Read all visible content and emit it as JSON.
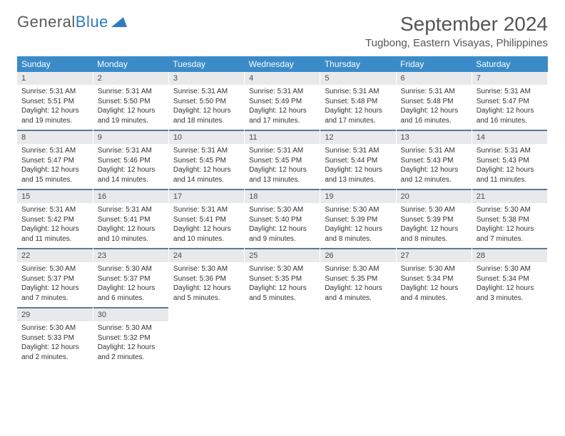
{
  "brand": {
    "name1": "General",
    "name2": "Blue"
  },
  "title": "September 2024",
  "subtitle": "Tugbong, Eastern Visayas, Philippines",
  "colors": {
    "header_bg": "#3b8bc8",
    "header_text": "#ffffff",
    "daynum_bg": "#e8e9ea",
    "daynum_border": "#5a7a9a",
    "text": "#333333",
    "brand_gray": "#5a5a5a",
    "brand_blue": "#2f7bbf"
  },
  "weekdays": [
    "Sunday",
    "Monday",
    "Tuesday",
    "Wednesday",
    "Thursday",
    "Friday",
    "Saturday"
  ],
  "days": [
    {
      "n": "1",
      "sunrise": "Sunrise: 5:31 AM",
      "sunset": "Sunset: 5:51 PM",
      "day1": "Daylight: 12 hours",
      "day2": "and 19 minutes."
    },
    {
      "n": "2",
      "sunrise": "Sunrise: 5:31 AM",
      "sunset": "Sunset: 5:50 PM",
      "day1": "Daylight: 12 hours",
      "day2": "and 19 minutes."
    },
    {
      "n": "3",
      "sunrise": "Sunrise: 5:31 AM",
      "sunset": "Sunset: 5:50 PM",
      "day1": "Daylight: 12 hours",
      "day2": "and 18 minutes."
    },
    {
      "n": "4",
      "sunrise": "Sunrise: 5:31 AM",
      "sunset": "Sunset: 5:49 PM",
      "day1": "Daylight: 12 hours",
      "day2": "and 17 minutes."
    },
    {
      "n": "5",
      "sunrise": "Sunrise: 5:31 AM",
      "sunset": "Sunset: 5:48 PM",
      "day1": "Daylight: 12 hours",
      "day2": "and 17 minutes."
    },
    {
      "n": "6",
      "sunrise": "Sunrise: 5:31 AM",
      "sunset": "Sunset: 5:48 PM",
      "day1": "Daylight: 12 hours",
      "day2": "and 16 minutes."
    },
    {
      "n": "7",
      "sunrise": "Sunrise: 5:31 AM",
      "sunset": "Sunset: 5:47 PM",
      "day1": "Daylight: 12 hours",
      "day2": "and 16 minutes."
    },
    {
      "n": "8",
      "sunrise": "Sunrise: 5:31 AM",
      "sunset": "Sunset: 5:47 PM",
      "day1": "Daylight: 12 hours",
      "day2": "and 15 minutes."
    },
    {
      "n": "9",
      "sunrise": "Sunrise: 5:31 AM",
      "sunset": "Sunset: 5:46 PM",
      "day1": "Daylight: 12 hours",
      "day2": "and 14 minutes."
    },
    {
      "n": "10",
      "sunrise": "Sunrise: 5:31 AM",
      "sunset": "Sunset: 5:45 PM",
      "day1": "Daylight: 12 hours",
      "day2": "and 14 minutes."
    },
    {
      "n": "11",
      "sunrise": "Sunrise: 5:31 AM",
      "sunset": "Sunset: 5:45 PM",
      "day1": "Daylight: 12 hours",
      "day2": "and 13 minutes."
    },
    {
      "n": "12",
      "sunrise": "Sunrise: 5:31 AM",
      "sunset": "Sunset: 5:44 PM",
      "day1": "Daylight: 12 hours",
      "day2": "and 13 minutes."
    },
    {
      "n": "13",
      "sunrise": "Sunrise: 5:31 AM",
      "sunset": "Sunset: 5:43 PM",
      "day1": "Daylight: 12 hours",
      "day2": "and 12 minutes."
    },
    {
      "n": "14",
      "sunrise": "Sunrise: 5:31 AM",
      "sunset": "Sunset: 5:43 PM",
      "day1": "Daylight: 12 hours",
      "day2": "and 11 minutes."
    },
    {
      "n": "15",
      "sunrise": "Sunrise: 5:31 AM",
      "sunset": "Sunset: 5:42 PM",
      "day1": "Daylight: 12 hours",
      "day2": "and 11 minutes."
    },
    {
      "n": "16",
      "sunrise": "Sunrise: 5:31 AM",
      "sunset": "Sunset: 5:41 PM",
      "day1": "Daylight: 12 hours",
      "day2": "and 10 minutes."
    },
    {
      "n": "17",
      "sunrise": "Sunrise: 5:31 AM",
      "sunset": "Sunset: 5:41 PM",
      "day1": "Daylight: 12 hours",
      "day2": "and 10 minutes."
    },
    {
      "n": "18",
      "sunrise": "Sunrise: 5:30 AM",
      "sunset": "Sunset: 5:40 PM",
      "day1": "Daylight: 12 hours",
      "day2": "and 9 minutes."
    },
    {
      "n": "19",
      "sunrise": "Sunrise: 5:30 AM",
      "sunset": "Sunset: 5:39 PM",
      "day1": "Daylight: 12 hours",
      "day2": "and 8 minutes."
    },
    {
      "n": "20",
      "sunrise": "Sunrise: 5:30 AM",
      "sunset": "Sunset: 5:39 PM",
      "day1": "Daylight: 12 hours",
      "day2": "and 8 minutes."
    },
    {
      "n": "21",
      "sunrise": "Sunrise: 5:30 AM",
      "sunset": "Sunset: 5:38 PM",
      "day1": "Daylight: 12 hours",
      "day2": "and 7 minutes."
    },
    {
      "n": "22",
      "sunrise": "Sunrise: 5:30 AM",
      "sunset": "Sunset: 5:37 PM",
      "day1": "Daylight: 12 hours",
      "day2": "and 7 minutes."
    },
    {
      "n": "23",
      "sunrise": "Sunrise: 5:30 AM",
      "sunset": "Sunset: 5:37 PM",
      "day1": "Daylight: 12 hours",
      "day2": "and 6 minutes."
    },
    {
      "n": "24",
      "sunrise": "Sunrise: 5:30 AM",
      "sunset": "Sunset: 5:36 PM",
      "day1": "Daylight: 12 hours",
      "day2": "and 5 minutes."
    },
    {
      "n": "25",
      "sunrise": "Sunrise: 5:30 AM",
      "sunset": "Sunset: 5:35 PM",
      "day1": "Daylight: 12 hours",
      "day2": "and 5 minutes."
    },
    {
      "n": "26",
      "sunrise": "Sunrise: 5:30 AM",
      "sunset": "Sunset: 5:35 PM",
      "day1": "Daylight: 12 hours",
      "day2": "and 4 minutes."
    },
    {
      "n": "27",
      "sunrise": "Sunrise: 5:30 AM",
      "sunset": "Sunset: 5:34 PM",
      "day1": "Daylight: 12 hours",
      "day2": "and 4 minutes."
    },
    {
      "n": "28",
      "sunrise": "Sunrise: 5:30 AM",
      "sunset": "Sunset: 5:34 PM",
      "day1": "Daylight: 12 hours",
      "day2": "and 3 minutes."
    },
    {
      "n": "29",
      "sunrise": "Sunrise: 5:30 AM",
      "sunset": "Sunset: 5:33 PM",
      "day1": "Daylight: 12 hours",
      "day2": "and 2 minutes."
    },
    {
      "n": "30",
      "sunrise": "Sunrise: 5:30 AM",
      "sunset": "Sunset: 5:32 PM",
      "day1": "Daylight: 12 hours",
      "day2": "and 2 minutes."
    }
  ]
}
